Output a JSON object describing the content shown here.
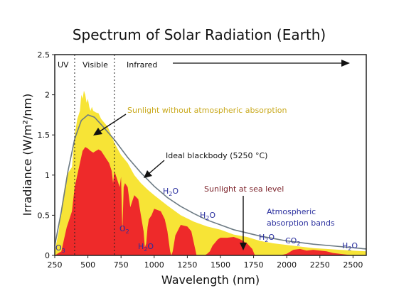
{
  "chart_data": {
    "type": "area",
    "title": "Spectrum of Solar Radiation (Earth)",
    "xlabel": "Wavelength (nm)",
    "ylabel": "Irradiance (W/m²/nm)",
    "xlim": [
      250,
      2600
    ],
    "ylim": [
      0,
      2.5
    ],
    "xticks": [
      "250",
      "500",
      "750",
      "1000",
      "1250",
      "1500",
      "1750",
      "2000",
      "2250",
      "2500"
    ],
    "yticks": [
      "0",
      "0.5",
      "1",
      "1.5",
      "2",
      "2.5"
    ],
    "grid": false,
    "regions": [
      {
        "label": "UV",
        "from": 250,
        "to": 400
      },
      {
        "label": "Visible",
        "from": 400,
        "to": 700
      },
      {
        "label": "Infrared",
        "from": 700,
        "to": 2600
      }
    ],
    "series": [
      {
        "name": "Sunlight without atmospheric absorption",
        "color": "#f7e436",
        "x": [
          250,
          280,
          300,
          320,
          340,
          360,
          380,
          400,
          420,
          440,
          450,
          460,
          470,
          480,
          490,
          500,
          510,
          520,
          530,
          540,
          560,
          580,
          600,
          650,
          700,
          750,
          800,
          850,
          900,
          950,
          1000,
          1100,
          1200,
          1300,
          1400,
          1500,
          1600,
          1700,
          1800,
          1900,
          2000,
          2100,
          2200,
          2300,
          2400,
          2500,
          2600
        ],
        "y": [
          0.05,
          0.3,
          0.6,
          0.8,
          1.0,
          1.05,
          1.1,
          1.5,
          1.7,
          1.8,
          2.0,
          1.95,
          2.05,
          2.0,
          1.9,
          1.95,
          1.85,
          1.8,
          1.85,
          1.8,
          1.78,
          1.77,
          1.7,
          1.6,
          1.4,
          1.25,
          1.15,
          1.0,
          0.9,
          0.82,
          0.75,
          0.62,
          0.5,
          0.42,
          0.36,
          0.32,
          0.26,
          0.23,
          0.18,
          0.15,
          0.13,
          0.11,
          0.09,
          0.08,
          0.07,
          0.06,
          0.05
        ]
      },
      {
        "name": "Sunlight at sea level",
        "color": "#ee2a2a",
        "x": [
          250,
          300,
          320,
          340,
          360,
          380,
          400,
          420,
          440,
          460,
          480,
          500,
          520,
          540,
          560,
          580,
          600,
          620,
          640,
          660,
          680,
          690,
          700,
          720,
          740,
          750,
          760,
          770,
          780,
          800,
          820,
          850,
          880,
          900,
          920,
          930,
          940,
          950,
          960,
          980,
          1000,
          1050,
          1080,
          1100,
          1120,
          1130,
          1140,
          1160,
          1200,
          1250,
          1280,
          1300,
          1320,
          1340,
          1360,
          1380,
          1400,
          1420,
          1440,
          1480,
          1500,
          1550,
          1600,
          1650,
          1700,
          1740,
          1760,
          1780,
          1800,
          1820,
          1850,
          1900,
          1950,
          2000,
          2050,
          2100,
          2150,
          2200,
          2250,
          2300,
          2350,
          2400,
          2450,
          2500,
          2550,
          2600
        ],
        "y": [
          0,
          0.05,
          0.2,
          0.35,
          0.45,
          0.55,
          0.85,
          1.0,
          1.15,
          1.3,
          1.35,
          1.33,
          1.3,
          1.28,
          1.3,
          1.32,
          1.3,
          1.25,
          1.2,
          1.15,
          1.05,
          0.9,
          1.05,
          0.95,
          0.85,
          0.98,
          0.3,
          0.85,
          0.9,
          0.85,
          0.6,
          0.75,
          0.7,
          0.5,
          0.3,
          0.1,
          0.15,
          0.35,
          0.45,
          0.5,
          0.58,
          0.55,
          0.45,
          0.3,
          0.05,
          0.0,
          0.05,
          0.25,
          0.38,
          0.36,
          0.3,
          0.15,
          0.0,
          0.0,
          0.0,
          0.0,
          0.02,
          0.05,
          0.12,
          0.2,
          0.22,
          0.22,
          0.23,
          0.2,
          0.15,
          0.08,
          0.0,
          0.0,
          0.0,
          0.0,
          0.0,
          0.0,
          0.0,
          0.02,
          0.07,
          0.08,
          0.06,
          0.07,
          0.06,
          0.05,
          0.03,
          0.02,
          0.01,
          0.0,
          0.0,
          0.0
        ]
      },
      {
        "name": "Ideal blackbody (5250 °C)",
        "color": "#6d7b84",
        "x": [
          250,
          300,
          350,
          400,
          450,
          500,
          550,
          600,
          700,
          800,
          900,
          1000,
          1100,
          1200,
          1300,
          1400,
          1500,
          1600,
          1700,
          1800,
          1900,
          2000,
          2200,
          2400,
          2600
        ],
        "y": [
          0.12,
          0.55,
          1.05,
          1.45,
          1.68,
          1.75,
          1.72,
          1.63,
          1.44,
          1.22,
          1.03,
          0.86,
          0.72,
          0.61,
          0.52,
          0.44,
          0.38,
          0.32,
          0.28,
          0.24,
          0.21,
          0.18,
          0.14,
          0.11,
          0.08
        ]
      }
    ],
    "annotations": {
      "no_atmosphere": "Sunlight without atmospheric absorption",
      "blackbody": "Ideal blackbody (5250 °C)",
      "sea_level": "Sunlight at sea level",
      "bands_line1": "Atmospheric",
      "bands_line2": "absorption bands",
      "o3": "O",
      "o3_sub": "3",
      "o2": "O",
      "o2_sub": "2",
      "h2o_text": "H",
      "h2o_sub": "2",
      "h2o_end": "O",
      "co2": "CO",
      "co2_sub": "2"
    },
    "colors": {
      "no_atmosphere_annotation": "#c9a91c",
      "sea_level_annotation": "#7a1f27",
      "molecule": "#2a2f9e",
      "bands_annotation": "#2a2f9e"
    }
  }
}
